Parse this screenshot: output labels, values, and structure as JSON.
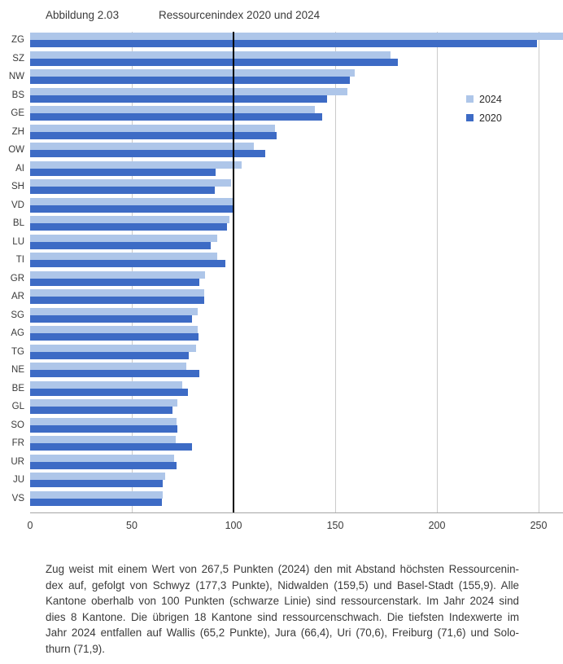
{
  "header": {
    "figure_label": "Abbildung 2.03",
    "title": "Ressourcenindex 2020 und 2024"
  },
  "chart_data": {
    "type": "bar",
    "orientation": "horizontal",
    "title": "Ressourcenindex 2020 und 2024",
    "categories": [
      "ZG",
      "SZ",
      "NW",
      "BS",
      "GE",
      "ZH",
      "OW",
      "AI",
      "SH",
      "VD",
      "BL",
      "LU",
      "TI",
      "GR",
      "AR",
      "SG",
      "AG",
      "TG",
      "NE",
      "BE",
      "GL",
      "SO",
      "FR",
      "UR",
      "JU",
      "VS"
    ],
    "series": [
      {
        "name": "2024",
        "color": "#aec6e9",
        "values": [
          267.5,
          177.3,
          159.5,
          155.9,
          139.9,
          120.4,
          109.9,
          103.8,
          98.8,
          99.9,
          97.8,
          92.0,
          91.8,
          86.0,
          85.4,
          82.4,
          82.2,
          81.4,
          76.7,
          74.8,
          72.4,
          71.9,
          71.6,
          70.6,
          66.4,
          65.2
        ]
      },
      {
        "name": "2020",
        "color": "#3d6bc5",
        "values": [
          249.0,
          180.7,
          157.1,
          145.9,
          143.4,
          121.1,
          115.5,
          91.1,
          90.8,
          100.0,
          96.8,
          88.8,
          95.8,
          83.2,
          85.4,
          79.5,
          82.7,
          77.8,
          83.1,
          77.4,
          70.0,
          72.4,
          79.5,
          71.8,
          65.1,
          64.9
        ]
      }
    ],
    "x_ticks": [
      0,
      50,
      100,
      150,
      200,
      250
    ],
    "xlim": [
      0,
      262
    ],
    "reference_line": {
      "value": 100,
      "color": "#000000",
      "label": "schwarze Linie"
    },
    "grid": "vertical",
    "legend_position": "upper right inside plot",
    "xlabel": "",
    "ylabel": ""
  },
  "legend": {
    "items": [
      {
        "label": "2024",
        "color": "#aec6e9"
      },
      {
        "label": "2020",
        "color": "#3d6bc5"
      }
    ]
  },
  "caption": {
    "lines": [
      "Zug weist mit einem Wert von 267,5 Punkten (2024) den mit Abstand höchsten Ressourcenin-",
      "dex auf, gefolgt von Schwyz (177,3 Punkte), Nidwalden (159,5) und Basel-Stadt (155,9). Alle",
      "Kantone oberhalb von 100 Punkten (schwarze Linie) sind ressourcenstark. Im Jahr 2024 sind",
      "dies 8 Kantone. Die übrigen 18 Kantone sind ressourcenschwach. Die tiefsten Indexwerte im",
      "Jahr 2024 entfallen auf Wallis (65,2 Punkte), Jura (66,4), Uri (70,6), Freiburg (71,6) und Solo-",
      "thurn (71,9)."
    ]
  },
  "colors": {
    "bar_2024": "#aec6e9",
    "bar_2020": "#3d6bc5",
    "gridline": "#cbcbcb",
    "axis_line": "#a6a6a6",
    "reference_line": "#000000",
    "text": "#3a3a3a"
  }
}
